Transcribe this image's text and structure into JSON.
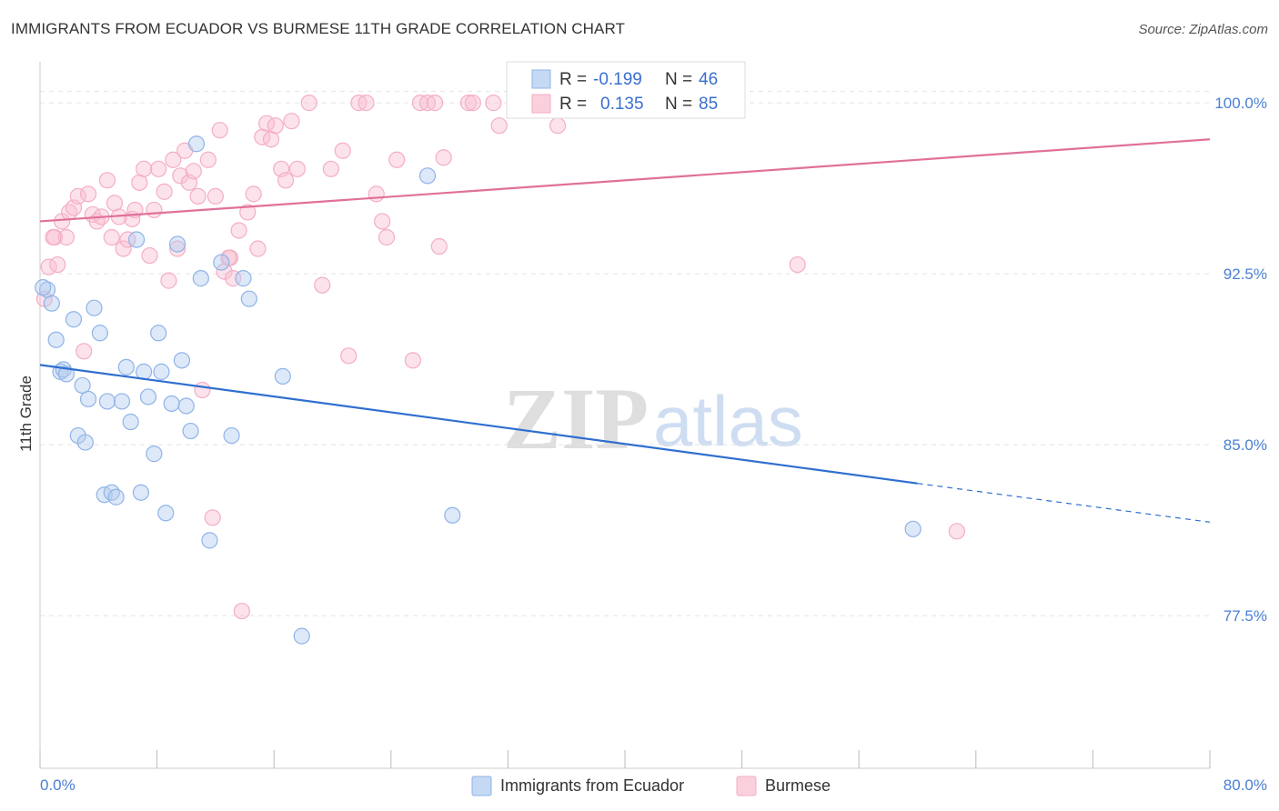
{
  "chart_data": {
    "type": "scatter",
    "title": "IMMIGRANTS FROM ECUADOR VS BURMESE 11TH GRADE CORRELATION CHART",
    "source": "Source: ZipAtlas.com",
    "xlabel": "",
    "ylabel": "11th Grade",
    "xlim": [
      0,
      80
    ],
    "ylim": [
      70.8,
      101.8
    ],
    "x_tick_labels": [
      "0.0%",
      "80.0%"
    ],
    "y_ticks": [
      77.5,
      85.0,
      92.5,
      100.0
    ],
    "y_tick_labels": [
      "77.5%",
      "85.0%",
      "92.5%",
      "100.0%"
    ],
    "watermark": {
      "zip": "ZIP",
      "atlas": "atlas"
    },
    "legend": {
      "r_label": "R =",
      "n_label": "N =",
      "entries": [
        {
          "r": "-0.199",
          "n": "46"
        },
        {
          "r": "0.135",
          "n": "85"
        }
      ]
    },
    "series": [
      {
        "name": "Immigrants from Ecuador",
        "color": "#8fb4e8",
        "line_color": "#2f6fd0",
        "trend": {
          "x0": 0,
          "y0": 88.5,
          "x1": 60,
          "y1": 83.3,
          "x_dash_end": 80,
          "y_dash_end": 81.6
        },
        "points": [
          [
            0.5,
            91.8
          ],
          [
            0.8,
            91.2
          ],
          [
            1.1,
            89.6
          ],
          [
            1.4,
            88.2
          ],
          [
            1.6,
            88.3
          ],
          [
            1.8,
            88.1
          ],
          [
            2.3,
            90.5
          ],
          [
            2.6,
            85.4
          ],
          [
            2.9,
            87.6
          ],
          [
            3.1,
            85.1
          ],
          [
            3.3,
            87.0
          ],
          [
            3.7,
            91.0
          ],
          [
            4.1,
            89.9
          ],
          [
            4.4,
            82.8
          ],
          [
            4.6,
            86.9
          ],
          [
            4.9,
            82.9
          ],
          [
            5.2,
            82.7
          ],
          [
            5.6,
            86.9
          ],
          [
            5.9,
            88.4
          ],
          [
            6.2,
            86.0
          ],
          [
            6.6,
            94.0
          ],
          [
            6.9,
            82.9
          ],
          [
            7.1,
            88.2
          ],
          [
            7.4,
            87.1
          ],
          [
            7.8,
            84.6
          ],
          [
            8.1,
            89.9
          ],
          [
            8.3,
            88.2
          ],
          [
            8.6,
            82.0
          ],
          [
            9.0,
            86.8
          ],
          [
            9.4,
            93.8
          ],
          [
            9.7,
            88.7
          ],
          [
            10.0,
            86.7
          ],
          [
            10.3,
            85.6
          ],
          [
            10.7,
            98.2
          ],
          [
            11.0,
            92.3
          ],
          [
            11.6,
            80.8
          ],
          [
            12.4,
            93.0
          ],
          [
            13.1,
            85.4
          ],
          [
            13.9,
            92.3
          ],
          [
            14.3,
            91.4
          ],
          [
            16.6,
            88.0
          ],
          [
            17.9,
            76.6
          ],
          [
            26.5,
            96.8
          ],
          [
            28.2,
            81.9
          ],
          [
            59.7,
            81.3
          ],
          [
            0.2,
            91.9
          ]
        ]
      },
      {
        "name": "Burmese",
        "color": "#f4aec4",
        "line_color": "#e0709a",
        "trend": {
          "x0": 0,
          "y0": 94.8,
          "x1": 80,
          "y1": 98.4
        },
        "points": [
          [
            0.3,
            91.4
          ],
          [
            0.6,
            92.8
          ],
          [
            1.0,
            94.1
          ],
          [
            1.2,
            92.9
          ],
          [
            1.5,
            94.8
          ],
          [
            1.8,
            94.1
          ],
          [
            2.0,
            95.2
          ],
          [
            2.3,
            95.4
          ],
          [
            2.6,
            95.9
          ],
          [
            3.0,
            89.1
          ],
          [
            3.3,
            96.0
          ],
          [
            3.6,
            95.1
          ],
          [
            3.9,
            94.8
          ],
          [
            4.2,
            95.0
          ],
          [
            4.6,
            96.6
          ],
          [
            4.9,
            94.1
          ],
          [
            5.1,
            95.6
          ],
          [
            5.4,
            95.0
          ],
          [
            5.7,
            93.6
          ],
          [
            6.0,
            94.0
          ],
          [
            6.3,
            94.9
          ],
          [
            6.5,
            95.3
          ],
          [
            6.8,
            96.5
          ],
          [
            7.1,
            97.1
          ],
          [
            7.5,
            93.3
          ],
          [
            7.8,
            95.3
          ],
          [
            8.1,
            97.1
          ],
          [
            8.5,
            96.1
          ],
          [
            8.8,
            92.2
          ],
          [
            9.1,
            97.5
          ],
          [
            9.4,
            93.6
          ],
          [
            9.6,
            96.8
          ],
          [
            9.9,
            97.9
          ],
          [
            10.2,
            96.5
          ],
          [
            10.5,
            97.0
          ],
          [
            10.8,
            95.9
          ],
          [
            11.1,
            87.4
          ],
          [
            11.5,
            97.5
          ],
          [
            11.8,
            81.8
          ],
          [
            12.0,
            95.9
          ],
          [
            12.3,
            98.8
          ],
          [
            12.6,
            92.6
          ],
          [
            13.0,
            93.2
          ],
          [
            13.2,
            92.3
          ],
          [
            13.6,
            94.4
          ],
          [
            13.8,
            77.7
          ],
          [
            14.2,
            95.2
          ],
          [
            14.6,
            96.0
          ],
          [
            14.9,
            93.6
          ],
          [
            15.2,
            98.5
          ],
          [
            15.5,
            99.1
          ],
          [
            15.8,
            98.4
          ],
          [
            16.1,
            99.0
          ],
          [
            16.5,
            97.1
          ],
          [
            16.8,
            96.6
          ],
          [
            17.2,
            99.2
          ],
          [
            17.6,
            97.1
          ],
          [
            18.4,
            100.0
          ],
          [
            19.3,
            92.0
          ],
          [
            19.9,
            97.1
          ],
          [
            20.7,
            97.9
          ],
          [
            21.1,
            88.9
          ],
          [
            21.8,
            100.0
          ],
          [
            22.3,
            100.0
          ],
          [
            23.0,
            96.0
          ],
          [
            23.4,
            94.8
          ],
          [
            23.7,
            94.1
          ],
          [
            24.4,
            97.5
          ],
          [
            25.5,
            88.7
          ],
          [
            26.0,
            100.0
          ],
          [
            26.5,
            100.0
          ],
          [
            27.0,
            100.0
          ],
          [
            27.3,
            93.7
          ],
          [
            27.6,
            97.6
          ],
          [
            29.3,
            100.0
          ],
          [
            29.6,
            100.0
          ],
          [
            31.0,
            100.0
          ],
          [
            31.4,
            99.0
          ],
          [
            33.0,
            100.0
          ],
          [
            34.0,
            100.0
          ],
          [
            35.4,
            99.0
          ],
          [
            51.8,
            92.9
          ],
          [
            62.7,
            81.2
          ],
          [
            0.9,
            94.1
          ],
          [
            12.9,
            93.2
          ]
        ]
      }
    ]
  }
}
